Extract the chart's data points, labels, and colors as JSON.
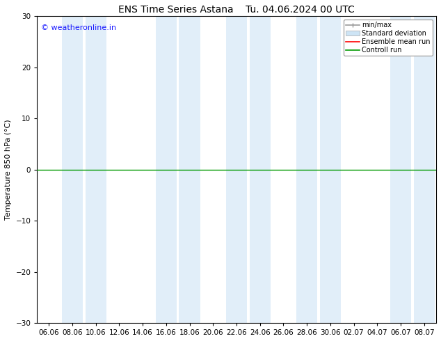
{
  "title_left": "ENS Time Series Astana",
  "title_right": "Tu. 04.06.2024 00 UTC",
  "ylabel": "Temperature 850 hPa (°C)",
  "ylim": [
    -30,
    30
  ],
  "yticks": [
    -30,
    -20,
    -10,
    0,
    10,
    20,
    30
  ],
  "x_labels": [
    "06.06",
    "08.06",
    "10.06",
    "12.06",
    "14.06",
    "16.06",
    "18.06",
    "20.06",
    "22.06",
    "24.06",
    "26.06",
    "28.06",
    "30.06",
    "02.07",
    "04.07",
    "06.07",
    "08.07"
  ],
  "watermark": "© weatheronline.in",
  "background_color": "#ffffff",
  "plot_bg_color": "#ffffff",
  "band_color": "#cde4f5",
  "band_alpha": 0.6,
  "hline_y": 0,
  "hline_color": "#009900",
  "hline_lw": 1.0,
  "legend_items": [
    {
      "label": "min/max",
      "color": "#999999"
    },
    {
      "label": "Standard deviation",
      "color": "#cde4f5"
    },
    {
      "label": "Ensemble mean run",
      "color": "#ff0000"
    },
    {
      "label": "Controll run",
      "color": "#009900"
    }
  ],
  "fig_width": 6.34,
  "fig_height": 4.9,
  "dpi": 100,
  "tick_fontsize": 7.5,
  "ylabel_fontsize": 8,
  "title_fontsize": 10,
  "watermark_fontsize": 8
}
